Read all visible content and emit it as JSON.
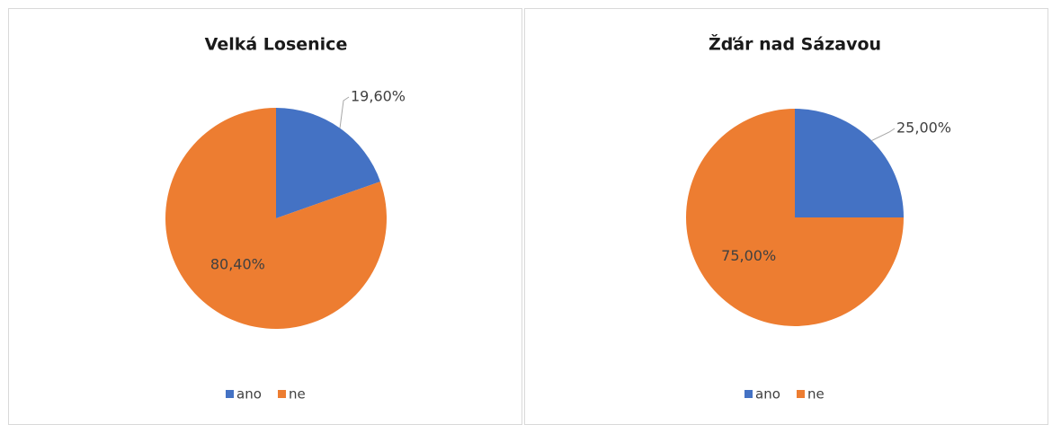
{
  "chart_data": [
    {
      "type": "pie",
      "title": "Velká Losenice",
      "categories": [
        "ano",
        "ne"
      ],
      "values": [
        19.6,
        80.4
      ],
      "value_labels": [
        "19,60%",
        "80,40%"
      ],
      "colors": [
        "#4472c4",
        "#ed7d31"
      ],
      "legend": "bottom"
    },
    {
      "type": "pie",
      "title": "Žďár nad Sázavou",
      "categories": [
        "ano",
        "ne"
      ],
      "values": [
        25,
        75
      ],
      "value_labels": [
        "25,00%",
        "75,00%"
      ],
      "colors": [
        "#4472c4",
        "#ed7d31"
      ],
      "legend": "bottom"
    }
  ]
}
